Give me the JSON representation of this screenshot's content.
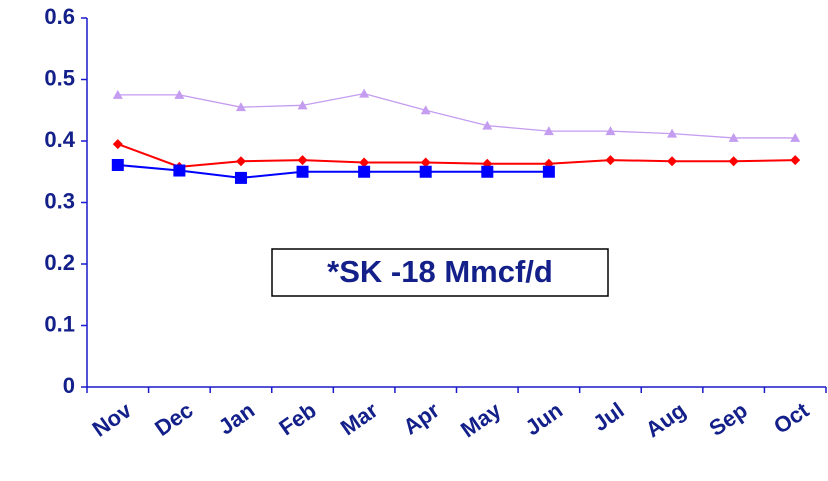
{
  "chart_data": {
    "type": "line",
    "categories": [
      "Nov",
      "Dec",
      "Jan",
      "Feb",
      "Mar",
      "Apr",
      "May",
      "Jun",
      "Jul",
      "Aug",
      "Sep",
      "Oct"
    ],
    "series": [
      {
        "color": "#c49cf0",
        "marker": "triangle",
        "values": [
          0.475,
          0.475,
          0.455,
          0.458,
          0.477,
          0.45,
          0.425,
          0.416,
          0.416,
          0.412,
          0.405,
          0.405
        ]
      },
      {
        "color": "#ff0000",
        "marker": "diamond",
        "values": [
          0.395,
          0.358,
          0.367,
          0.369,
          0.365,
          0.365,
          0.363,
          0.363,
          0.369,
          0.367,
          0.367,
          0.369
        ]
      },
      {
        "color": "#0000ff",
        "marker": "square",
        "values": [
          0.361,
          0.352,
          0.34,
          0.35,
          0.35,
          0.35,
          0.35,
          0.35,
          null,
          null,
          null,
          null
        ]
      }
    ],
    "annotation": "*SK -18 Mmcf/d",
    "ylim": [
      0,
      0.6
    ],
    "yticks": [
      0,
      0.1,
      0.2,
      0.3,
      0.4,
      0.5,
      0.6
    ]
  }
}
